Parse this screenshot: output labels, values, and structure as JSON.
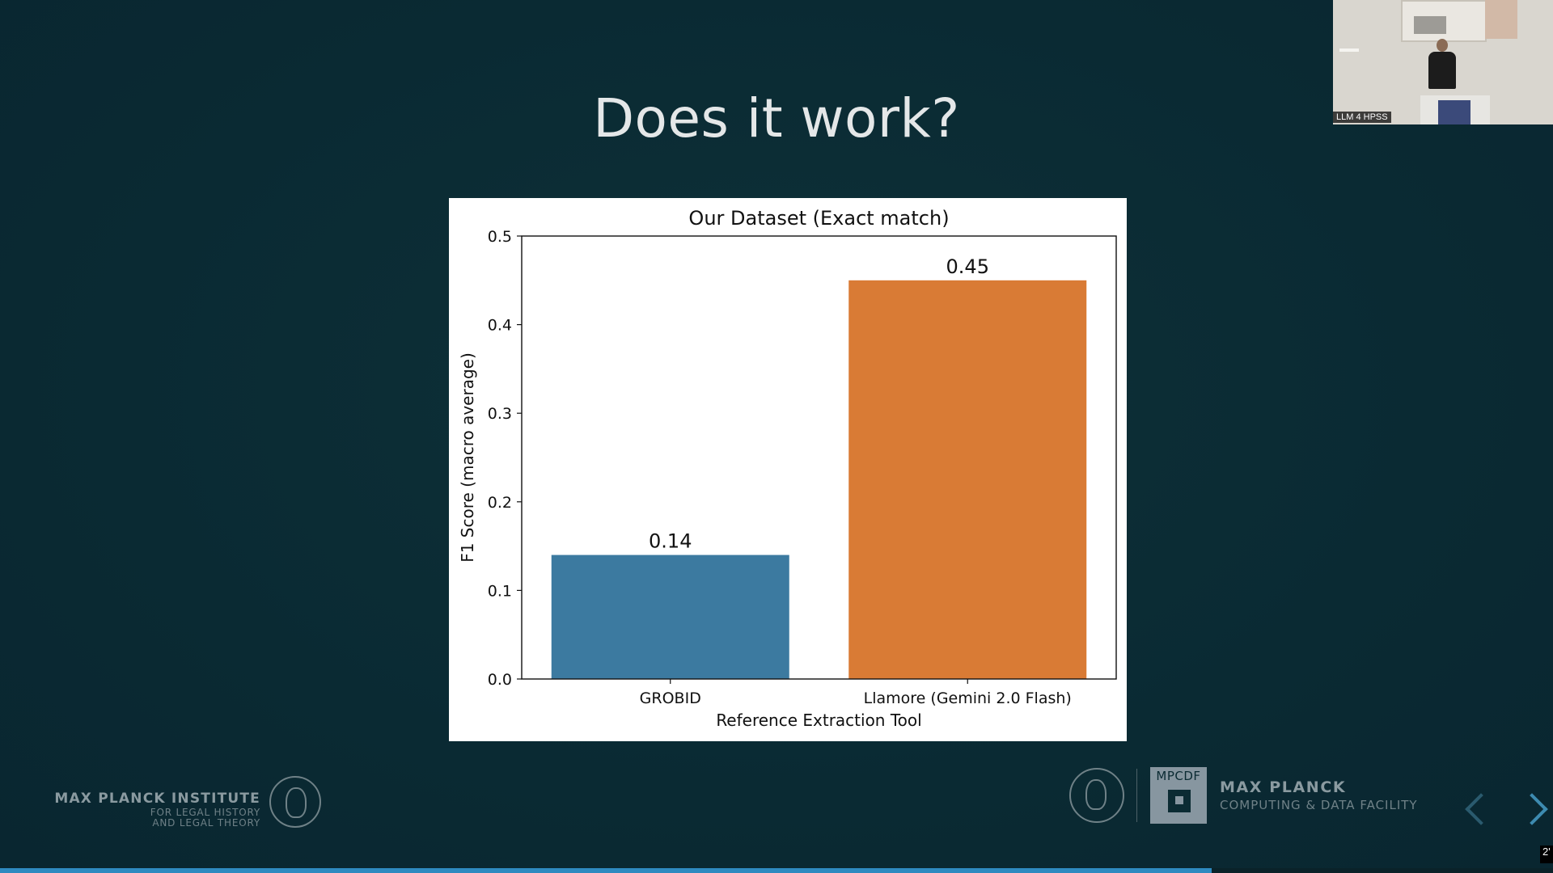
{
  "slide": {
    "title": "Does it work?"
  },
  "chart_data": {
    "type": "bar",
    "title": "Our Dataset (Exact match)",
    "xlabel": "Reference Extraction Tool",
    "ylabel": "F1 Score (macro average)",
    "categories": [
      "GROBID",
      "Llamore (Gemini 2.0 Flash)"
    ],
    "values": [
      0.14,
      0.45
    ],
    "value_labels": [
      "0.14",
      "0.45"
    ],
    "colors": [
      "#3c7aa0",
      "#d97b35"
    ],
    "ylim": [
      0,
      0.5
    ],
    "yticks": [
      0.0,
      0.1,
      0.2,
      0.3,
      0.4,
      0.5
    ],
    "ytick_labels": [
      "0.0",
      "0.1",
      "0.2",
      "0.3",
      "0.4",
      "0.5"
    ],
    "grid": false,
    "legend": "none"
  },
  "footer": {
    "left_logo": {
      "line1": "MAX PLANCK INSTITUTE",
      "line2": "FOR LEGAL HISTORY",
      "line3": "AND LEGAL THEORY",
      "icon": "minerva-seal-icon"
    },
    "right_logo": {
      "box_label": "MPCDF",
      "name": "MAX PLANCK",
      "subtitle": "COMPUTING & DATA FACILITY",
      "icon": "minerva-seal-icon"
    }
  },
  "navigation": {
    "prev_icon": "chevron-left-icon",
    "next_icon": "chevron-right-icon"
  },
  "progress": {
    "fraction": 0.78
  },
  "camera": {
    "label": "LLM 4 HPSS"
  },
  "corner_badge": {
    "text": "2'"
  }
}
